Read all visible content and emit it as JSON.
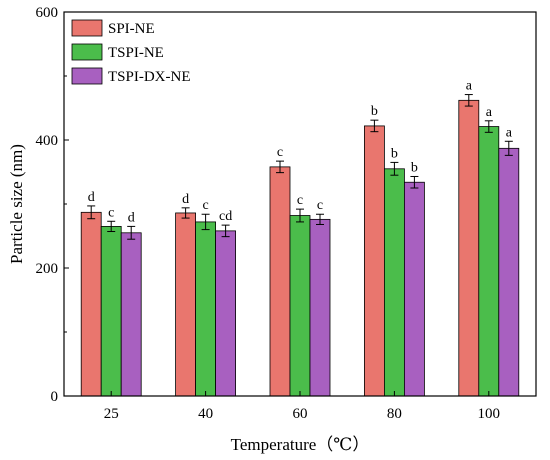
{
  "chart_data": {
    "type": "bar",
    "xlabel": "Temperature（℃）",
    "ylabel": "Particle size (nm)",
    "categories": [
      "25",
      "40",
      "60",
      "80",
      "100"
    ],
    "ylim": [
      0,
      600
    ],
    "yticks": [
      "0",
      "200",
      "400",
      "600"
    ],
    "legend_position": "top-left",
    "grid": false,
    "series": [
      {
        "name": "SPI-NE",
        "color": "#e9766e",
        "values": [
          287,
          286,
          358,
          422,
          462
        ],
        "errors": [
          10,
          8,
          9,
          9,
          9
        ],
        "labels": [
          "d",
          "d",
          "c",
          "b",
          "a"
        ]
      },
      {
        "name": "TSPI-NE",
        "color": "#4bbd4b",
        "values": [
          265,
          272,
          282,
          355,
          421
        ],
        "errors": [
          8,
          12,
          10,
          10,
          9
        ],
        "labels": [
          "c",
          "c",
          "c",
          "b",
          "a"
        ]
      },
      {
        "name": "TSPI-DX-NE",
        "color": "#a860c0",
        "values": [
          255,
          258,
          276,
          334,
          387
        ],
        "errors": [
          10,
          9,
          8,
          9,
          11
        ],
        "labels": [
          "d",
          "cd",
          "c",
          "b",
          "a"
        ]
      }
    ]
  }
}
